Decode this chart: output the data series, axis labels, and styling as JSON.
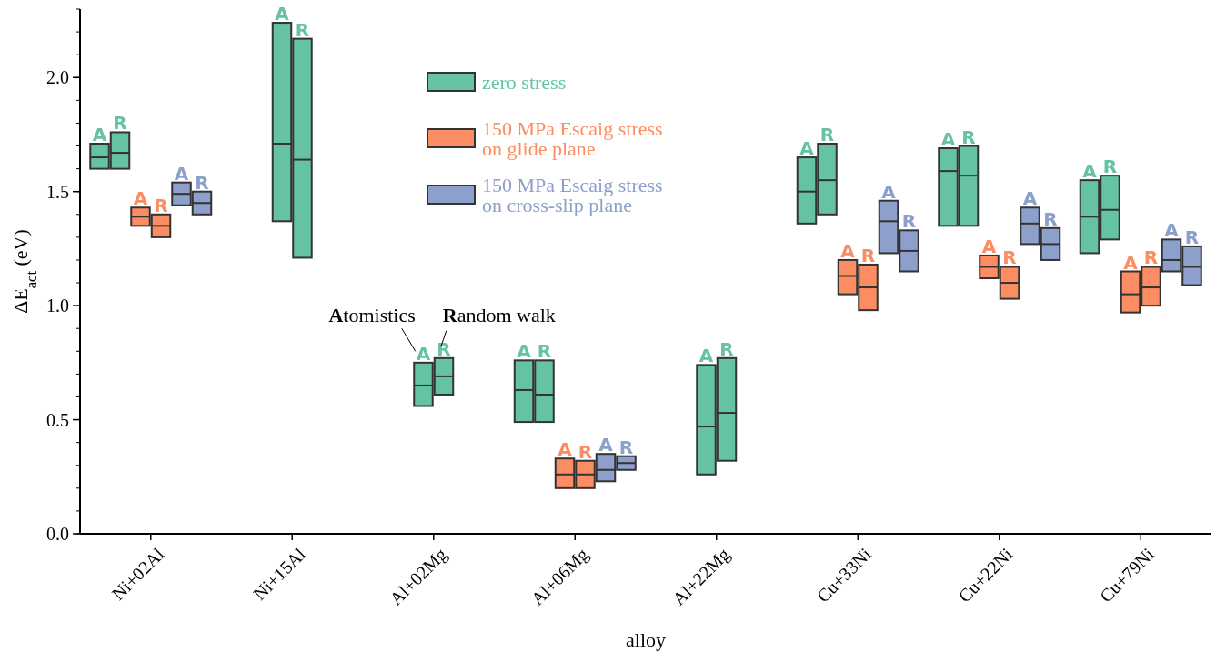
{
  "chart_data": {
    "type": "box",
    "xlabel": "alloy",
    "ylabel": "ΔE$_{act}$ (eV)",
    "categories": [
      "Ni+02Al",
      "Ni+15Al",
      "Al+02Mg",
      "Al+06Mg",
      "Al+22Mg",
      "Cu+33Ni",
      "Cu+22Ni",
      "Cu+79Ni"
    ],
    "ylim": [
      0,
      2.3
    ],
    "yticks": [
      {
        "value": 0,
        "label": "0.0"
      },
      0.5,
      {
        "value": 1,
        "label": "1.0"
      },
      1.5,
      {
        "value": 2,
        "label": "2.0"
      }
    ],
    "legend": "top",
    "annotations": [
      "Atomistics",
      "Random walk"
    ],
    "series": [
      {
        "name": "zero stress",
        "color": "#66c2a5",
        "value_labels": [
          "A",
          "A",
          "A",
          "A",
          "A",
          "A",
          "A",
          "A"
        ],
        "boxes": [
          {
            "low": 1.6,
            "q1": 1.6,
            "median": 1.65,
            "q3": 1.71,
            "high": 1.71
          },
          {
            "low": 1.37,
            "q1": 1.37,
            "median": 1.71,
            "q3": 2.24,
            "high": 2.24
          },
          {
            "low": 0.56,
            "q1": 0.56,
            "median": 0.65,
            "q3": 0.75,
            "high": 0.75
          },
          {
            "low": 0.49,
            "q1": 0.49,
            "median": 0.63,
            "q3": 0.76,
            "high": 0.76
          },
          {
            "low": 0.26,
            "q1": 0.26,
            "median": 0.47,
            "q3": 0.74,
            "high": 0.74
          },
          {
            "low": 1.36,
            "q1": 1.36,
            "median": 1.5,
            "q3": 1.65,
            "high": 1.65
          },
          {
            "low": 1.35,
            "q1": 1.35,
            "median": 1.59,
            "q3": 1.69,
            "high": 1.69
          },
          {
            "low": 1.23,
            "q1": 1.23,
            "median": 1.39,
            "q3": 1.55,
            "high": 1.55
          }
        ]
      },
      {
        "color": "#66c2a5",
        "value_labels": [
          "R",
          "R",
          "R",
          "R",
          "R",
          "R",
          "R",
          "R"
        ],
        "boxes": [
          {
            "low": 1.6,
            "q1": 1.6,
            "median": 1.67,
            "q3": 1.76,
            "high": 1.76
          },
          {
            "low": 1.21,
            "q1": 1.21,
            "median": 1.64,
            "q3": 2.17,
            "high": 2.17
          },
          {
            "low": 0.61,
            "q1": 0.61,
            "median": 0.69,
            "q3": 0.77,
            "high": 0.77
          },
          {
            "low": 0.49,
            "q1": 0.49,
            "median": 0.61,
            "q3": 0.76,
            "high": 0.76
          },
          {
            "low": 0.32,
            "q1": 0.32,
            "median": 0.53,
            "q3": 0.77,
            "high": 0.77
          },
          {
            "low": 1.4,
            "q1": 1.4,
            "median": 1.55,
            "q3": 1.71,
            "high": 1.71
          },
          {
            "low": 1.35,
            "q1": 1.35,
            "median": 1.57,
            "q3": 1.7,
            "high": 1.7
          },
          {
            "low": 1.29,
            "q1": 1.29,
            "median": 1.42,
            "q3": 1.57,
            "high": 1.57
          }
        ]
      },
      {
        "name": "150 MPa Escaig stress on glide plane",
        "color": "#fc8d62",
        "value_labels": [
          "A",
          null,
          null,
          "A",
          null,
          "A",
          "A",
          "A"
        ],
        "boxes": [
          {
            "low": 1.35,
            "q1": 1.35,
            "median": 1.39,
            "q3": 1.43,
            "high": 1.43
          },
          null,
          null,
          {
            "low": 0.2,
            "q1": 0.2,
            "median": 0.26,
            "q3": 0.33,
            "high": 0.33
          },
          null,
          {
            "low": 1.05,
            "q1": 1.05,
            "median": 1.13,
            "q3": 1.2,
            "high": 1.2
          },
          {
            "low": 1.12,
            "q1": 1.12,
            "median": 1.17,
            "q3": 1.22,
            "high": 1.22
          },
          {
            "low": 0.97,
            "q1": 0.97,
            "median": 1.05,
            "q3": 1.15,
            "high": 1.15
          }
        ]
      },
      {
        "color": "#fc8d62",
        "value_labels": [
          "R",
          null,
          null,
          "R",
          null,
          "R",
          "R",
          "R"
        ],
        "boxes": [
          {
            "low": 1.3,
            "q1": 1.3,
            "median": 1.35,
            "q3": 1.4,
            "high": 1.4
          },
          null,
          null,
          {
            "low": 0.2,
            "q1": 0.2,
            "median": 0.26,
            "q3": 0.32,
            "high": 0.32
          },
          null,
          {
            "low": 0.98,
            "q1": 0.98,
            "median": 1.08,
            "q3": 1.18,
            "high": 1.18
          },
          {
            "low": 1.03,
            "q1": 1.03,
            "median": 1.1,
            "q3": 1.17,
            "high": 1.17
          },
          {
            "low": 1.0,
            "q1": 1.0,
            "median": 1.08,
            "q3": 1.17,
            "high": 1.17
          }
        ]
      },
      {
        "name": "150 MPa Escaig stress on cross-slip plane",
        "color": "#8da0cb",
        "value_labels": [
          "A",
          null,
          null,
          "A",
          null,
          "A",
          "A",
          "A"
        ],
        "boxes": [
          {
            "low": 1.44,
            "q1": 1.44,
            "median": 1.49,
            "q3": 1.54,
            "high": 1.54
          },
          null,
          null,
          {
            "low": 0.23,
            "q1": 0.23,
            "median": 0.28,
            "q3": 0.35,
            "high": 0.35
          },
          null,
          {
            "low": 1.23,
            "q1": 1.23,
            "median": 1.37,
            "q3": 1.46,
            "high": 1.46
          },
          {
            "low": 1.27,
            "q1": 1.27,
            "median": 1.36,
            "q3": 1.43,
            "high": 1.43
          },
          {
            "low": 1.15,
            "q1": 1.15,
            "median": 1.2,
            "q3": 1.29,
            "high": 1.29
          }
        ]
      },
      {
        "color": "#8da0cb",
        "value_labels": [
          "R",
          null,
          null,
          "R",
          null,
          "R",
          "R",
          "R"
        ],
        "boxes": [
          {
            "low": 1.4,
            "q1": 1.4,
            "median": 1.45,
            "q3": 1.5,
            "high": 1.5
          },
          null,
          null,
          {
            "low": 0.28,
            "q1": 0.28,
            "median": 0.31,
            "q3": 0.34,
            "high": 0.34
          },
          null,
          {
            "low": 1.15,
            "q1": 1.15,
            "median": 1.24,
            "q3": 1.33,
            "high": 1.33
          },
          {
            "low": 1.2,
            "q1": 1.2,
            "median": 1.27,
            "q3": 1.34,
            "high": 1.34
          },
          {
            "low": 1.09,
            "q1": 1.09,
            "median": 1.17,
            "q3": 1.26,
            "high": 1.26
          }
        ]
      }
    ]
  }
}
